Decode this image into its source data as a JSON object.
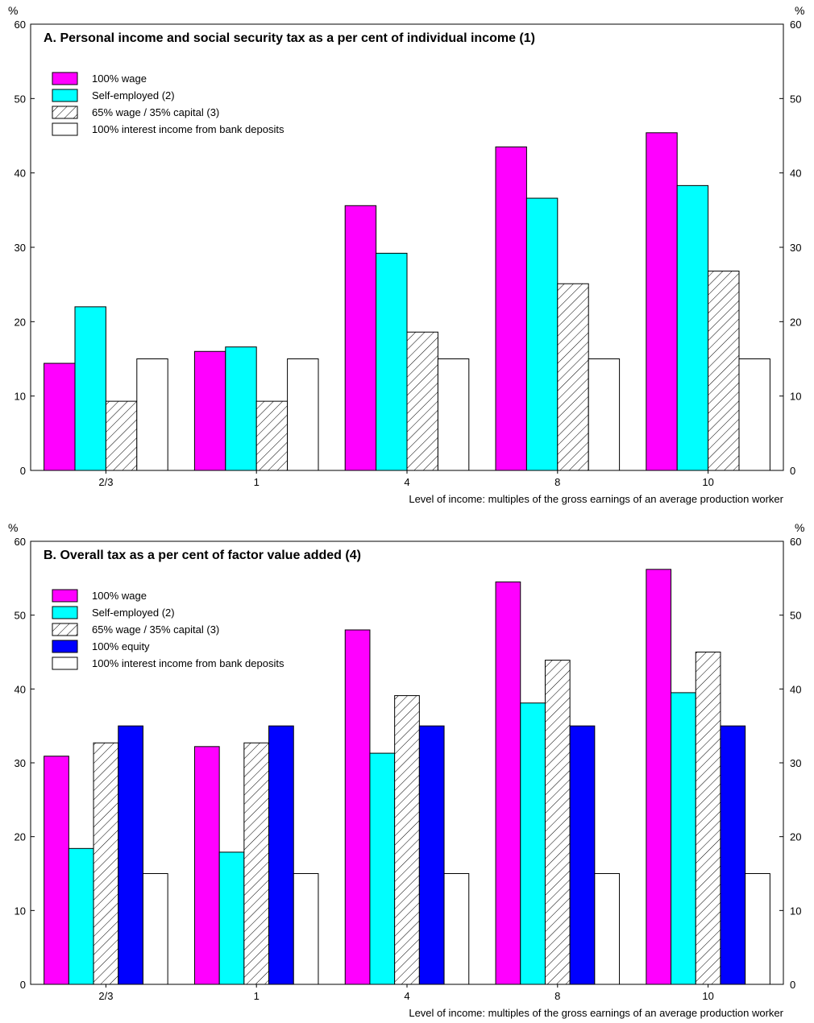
{
  "chart_data": [
    {
      "type": "bar",
      "title": "A. Personal income and social security tax as a per cent of individual income (1)",
      "unit_label": "%",
      "xlabel": "Level of income: multiples of the gross earnings of an average production worker",
      "ylabel": "",
      "ylim": [
        0,
        60
      ],
      "yticks": [
        "0",
        "10",
        "20",
        "30",
        "40",
        "50",
        "60"
      ],
      "categories": [
        "2/3",
        "1",
        "4",
        "8",
        "10"
      ],
      "legend_position": "top-left",
      "grid": false,
      "series": [
        {
          "name": "100% wage",
          "fill": "solid",
          "color": "#ff00ff",
          "values": [
            14.4,
            16.0,
            35.6,
            43.5,
            45.4
          ]
        },
        {
          "name": "Self-employed (2)",
          "fill": "solid",
          "color": "#00ffff",
          "values": [
            22.0,
            16.6,
            29.2,
            36.6,
            38.3
          ]
        },
        {
          "name": "65% wage / 35% capital (3)",
          "fill": "hatch",
          "color": "#ffffff",
          "values": [
            9.3,
            9.3,
            18.6,
            25.1,
            26.8
          ]
        },
        {
          "name": "100% interest income from bank deposits",
          "fill": "solid",
          "color": "#ffffff",
          "values": [
            15.0,
            15.0,
            15.0,
            15.0,
            15.0
          ]
        }
      ]
    },
    {
      "type": "bar",
      "title": "B. Overall tax as a per cent of factor value added (4)",
      "unit_label": "%",
      "xlabel": "Level of income: multiples of the gross earnings of an average production worker",
      "ylabel": "",
      "ylim": [
        0,
        60
      ],
      "yticks": [
        "0",
        "10",
        "20",
        "30",
        "40",
        "50",
        "60"
      ],
      "categories": [
        "2/3",
        "1",
        "4",
        "8",
        "10"
      ],
      "legend_position": "top-left",
      "grid": false,
      "series": [
        {
          "name": "100% wage",
          "fill": "solid",
          "color": "#ff00ff",
          "values": [
            30.9,
            32.2,
            48.0,
            54.5,
            56.2
          ]
        },
        {
          "name": "Self-employed (2)",
          "fill": "solid",
          "color": "#00ffff",
          "values": [
            18.4,
            17.9,
            31.3,
            38.1,
            39.5
          ]
        },
        {
          "name": "65% wage / 35% capital (3)",
          "fill": "hatch",
          "color": "#ffffff",
          "values": [
            32.7,
            32.7,
            39.1,
            43.9,
            45.0
          ]
        },
        {
          "name": "100% equity",
          "fill": "solid",
          "color": "#0000ff",
          "values": [
            35.0,
            35.0,
            35.0,
            35.0,
            35.0
          ]
        },
        {
          "name": "100% interest income from bank deposits",
          "fill": "solid",
          "color": "#ffffff",
          "values": [
            15.0,
            15.0,
            15.0,
            15.0,
            15.0
          ]
        }
      ]
    }
  ]
}
